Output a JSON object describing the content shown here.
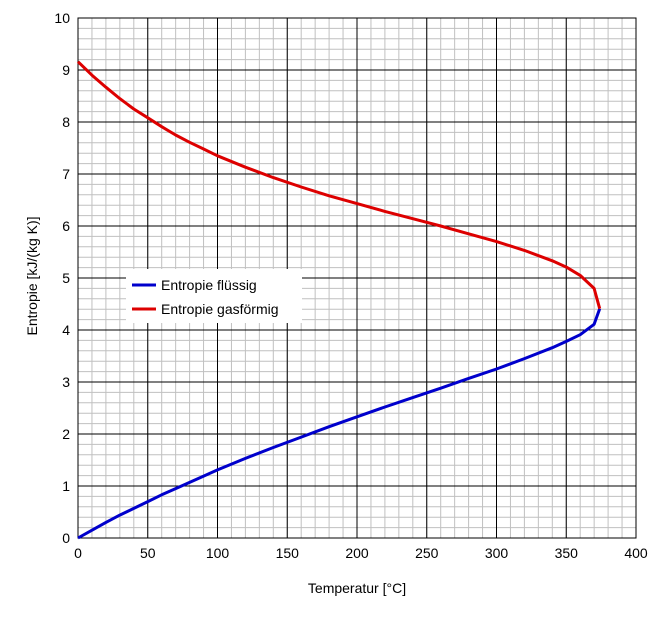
{
  "chart_data": {
    "type": "line",
    "title": "",
    "xlabel": "Temperatur [°C]",
    "ylabel": "Entropie [kJ/(kg K)]",
    "xlim": [
      0,
      400
    ],
    "ylim": [
      0,
      10
    ],
    "x_ticks": [
      0,
      50,
      100,
      150,
      200,
      250,
      300,
      350,
      400
    ],
    "y_ticks": [
      0,
      1,
      2,
      3,
      4,
      5,
      6,
      7,
      8,
      9,
      10
    ],
    "x_major_step": 50,
    "y_major_step": 1,
    "x_minor_step": 10,
    "y_minor_step": 0.2,
    "grid": true,
    "legend_position": "center-left",
    "series": [
      {
        "name": "Entropie flüssig",
        "color": "#0000cc",
        "x": [
          0,
          10,
          20,
          30,
          40,
          50,
          60,
          70,
          80,
          90,
          100,
          120,
          140,
          160,
          180,
          200,
          220,
          240,
          260,
          280,
          300,
          320,
          340,
          350,
          360,
          370,
          374
        ],
        "y": [
          0,
          0.15,
          0.3,
          0.44,
          0.57,
          0.7,
          0.83,
          0.95,
          1.07,
          1.19,
          1.31,
          1.53,
          1.74,
          1.94,
          2.14,
          2.33,
          2.52,
          2.7,
          2.88,
          3.07,
          3.25,
          3.45,
          3.66,
          3.78,
          3.91,
          4.11,
          4.41
        ]
      },
      {
        "name": "Entropie gasförmig",
        "color": "#dd0000",
        "x": [
          0,
          10,
          20,
          30,
          40,
          50,
          60,
          70,
          80,
          90,
          100,
          120,
          140,
          160,
          180,
          200,
          220,
          240,
          260,
          280,
          300,
          320,
          340,
          350,
          360,
          370,
          374
        ],
        "y": [
          9.16,
          8.9,
          8.67,
          8.45,
          8.25,
          8.08,
          7.91,
          7.75,
          7.61,
          7.48,
          7.35,
          7.13,
          6.93,
          6.75,
          6.58,
          6.43,
          6.28,
          6.14,
          6.0,
          5.85,
          5.7,
          5.53,
          5.33,
          5.21,
          5.05,
          4.8,
          4.41
        ]
      }
    ]
  }
}
